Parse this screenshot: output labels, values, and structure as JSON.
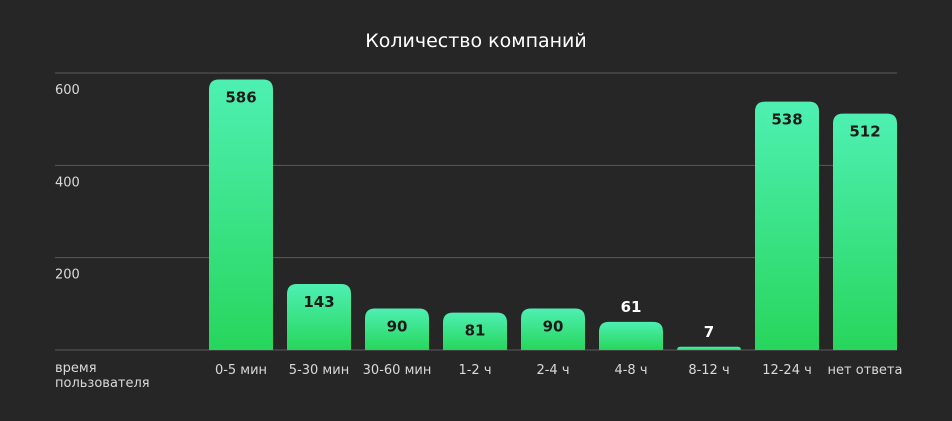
{
  "chart_data": {
    "type": "bar",
    "title": "Количество компаний",
    "xlabel": "время пользователя",
    "ylabel": "",
    "ylim": [
      0,
      600
    ],
    "yticks": [
      200,
      400,
      600
    ],
    "grid": true,
    "categories": [
      "0-5 мин",
      "5-30 мин",
      "30-60 мин",
      "1-2 ч",
      "2-4 ч",
      "4-8 ч",
      "8-12 ч",
      "12-24 ч",
      "нет ответа"
    ],
    "values": [
      586,
      143,
      90,
      81,
      90,
      61,
      7,
      538,
      512
    ],
    "value_labels": [
      "586",
      "143",
      "90",
      "81",
      "90",
      "61",
      "7",
      "538",
      "512"
    ]
  },
  "colors": {
    "background": "#262626",
    "bar_top": "#4ef0b2",
    "bar_bottom": "#27d65c",
    "grid": "#5a5a5a",
    "text": "#ffffff",
    "axis_text": "#d9d9d9",
    "label_on_bar": "#1a1a1a"
  }
}
